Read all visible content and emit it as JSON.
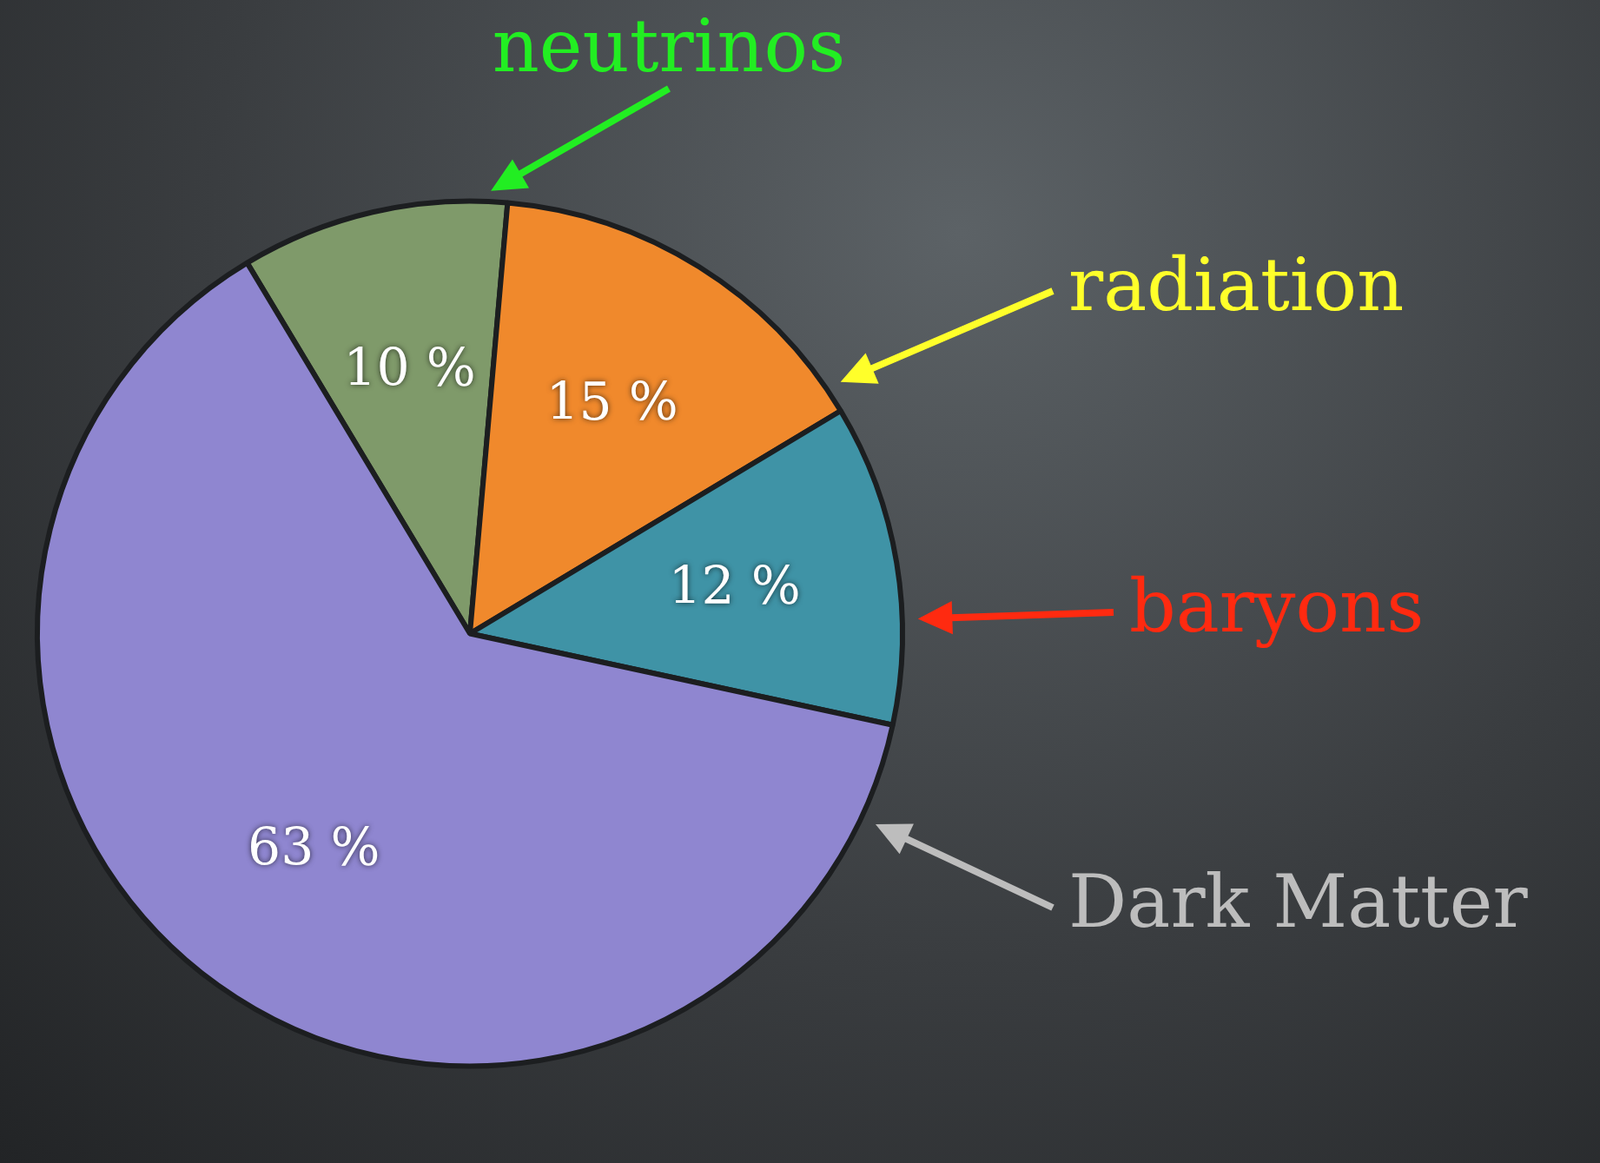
{
  "chart_data": {
    "type": "pie",
    "categories": [
      "neutrinos",
      "radiation",
      "baryons",
      "Dark Matter"
    ],
    "values": [
      10,
      15,
      12,
      63
    ],
    "value_labels": [
      "10 %",
      "15 %",
      "12 %",
      "63 %"
    ],
    "colors": [
      "#7f9a6a",
      "#f0892c",
      "#3f93a6",
      "#8f86d0"
    ],
    "data_labels": true
  }
}
